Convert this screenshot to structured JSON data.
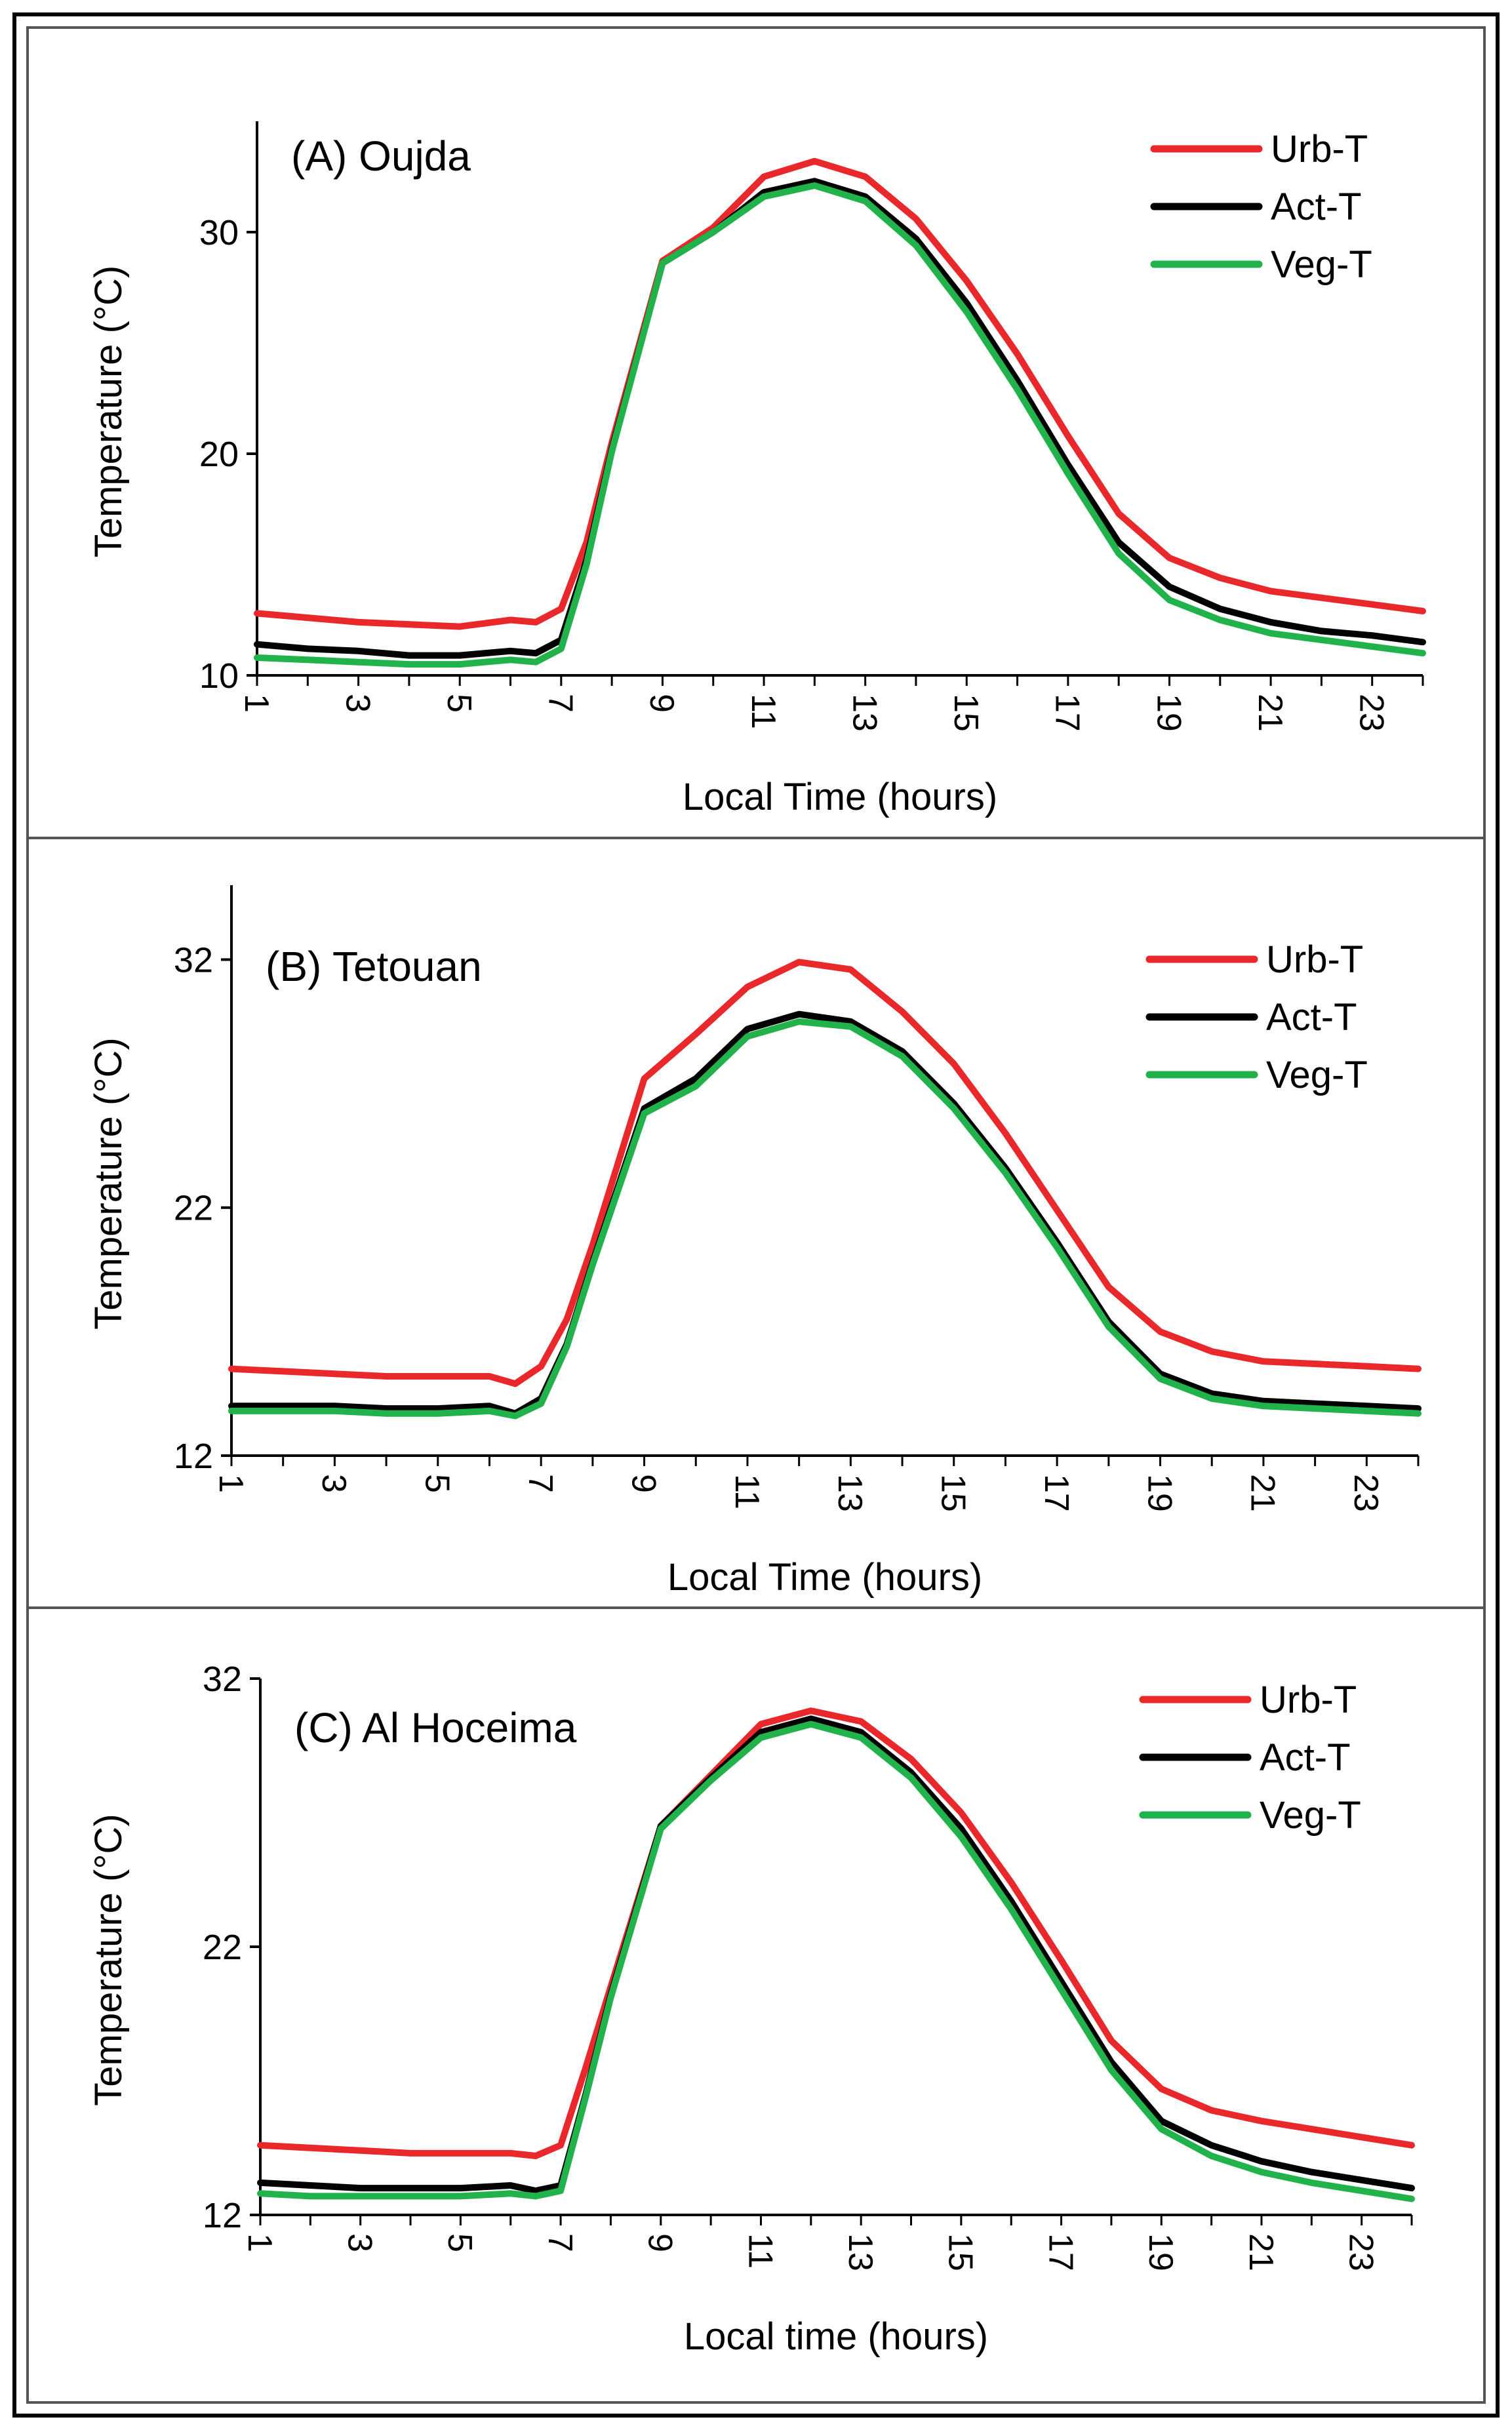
{
  "chart_data": [
    {
      "type": "line",
      "title": "(A) Oujda",
      "xlabel": "Local Time (hours)",
      "ylabel": "Temperature (°C)",
      "xlim": [
        1,
        24
      ],
      "ylim": [
        10,
        35
      ],
      "xticks": [
        1,
        3,
        5,
        7,
        9,
        11,
        13,
        15,
        17,
        19,
        21,
        23
      ],
      "yticks": [
        10,
        20,
        30
      ],
      "legend_position": "top-right",
      "x": [
        1,
        2,
        3,
        4,
        5,
        6,
        6.5,
        7,
        7.5,
        8,
        9,
        10,
        11,
        12,
        13,
        14,
        15,
        16,
        17,
        18,
        19,
        20,
        21,
        22,
        23,
        24
      ],
      "series": [
        {
          "name": "Urb-T",
          "color": "#e8282b",
          "values": [
            12.8,
            12.6,
            12.4,
            12.3,
            12.2,
            12.5,
            12.4,
            13.0,
            16.0,
            20.5,
            28.7,
            30.2,
            32.5,
            33.2,
            32.5,
            30.6,
            27.8,
            24.5,
            20.8,
            17.3,
            15.3,
            14.4,
            13.8,
            13.5,
            13.2,
            12.9
          ]
        },
        {
          "name": "Act-T",
          "color": "#000000",
          "values": [
            11.4,
            11.2,
            11.1,
            10.9,
            10.9,
            11.1,
            11.0,
            11.6,
            15.2,
            20.2,
            28.6,
            30.0,
            31.8,
            32.3,
            31.6,
            29.7,
            26.8,
            23.3,
            19.5,
            16.0,
            14.0,
            13.0,
            12.4,
            12.0,
            11.8,
            11.5
          ]
        },
        {
          "name": "Veg-T",
          "color": "#22b24c",
          "values": [
            10.8,
            10.7,
            10.6,
            10.5,
            10.5,
            10.7,
            10.6,
            11.2,
            15.0,
            20.1,
            28.6,
            30.0,
            31.6,
            32.1,
            31.4,
            29.4,
            26.4,
            22.9,
            19.1,
            15.5,
            13.4,
            12.5,
            11.9,
            11.6,
            11.3,
            11.0
          ]
        }
      ]
    },
    {
      "type": "line",
      "title": "(B) Tetouan",
      "xlabel": "Local Time (hours)",
      "ylabel": "Temperature (°C)",
      "xlim": [
        1,
        24
      ],
      "ylim": [
        12,
        35
      ],
      "xticks": [
        1,
        3,
        5,
        7,
        9,
        11,
        13,
        15,
        17,
        19,
        21,
        23
      ],
      "yticks": [
        12,
        22,
        32
      ],
      "legend_position": "top-right",
      "x": [
        1,
        2,
        3,
        4,
        5,
        6,
        6.5,
        7,
        7.5,
        8,
        9,
        10,
        11,
        12,
        13,
        14,
        15,
        16,
        17,
        18,
        19,
        20,
        21,
        22,
        23,
        24
      ],
      "series": [
        {
          "name": "Urb-T",
          "color": "#e8282b",
          "values": [
            15.5,
            15.4,
            15.3,
            15.2,
            15.2,
            15.2,
            14.9,
            15.6,
            17.5,
            20.5,
            27.2,
            29.0,
            30.9,
            31.9,
            31.6,
            29.9,
            27.8,
            25.0,
            21.9,
            18.8,
            17.0,
            16.2,
            15.8,
            15.7,
            15.6,
            15.5
          ]
        },
        {
          "name": "Act-T",
          "color": "#000000",
          "values": [
            14.0,
            14.0,
            14.0,
            13.9,
            13.9,
            14.0,
            13.7,
            14.3,
            16.5,
            19.8,
            26.0,
            27.2,
            29.2,
            29.8,
            29.5,
            28.3,
            26.2,
            23.6,
            20.6,
            17.4,
            15.3,
            14.5,
            14.2,
            14.1,
            14.0,
            13.9
          ]
        },
        {
          "name": "Veg-T",
          "color": "#22b24c",
          "values": [
            13.8,
            13.8,
            13.8,
            13.7,
            13.7,
            13.8,
            13.6,
            14.1,
            16.4,
            19.7,
            25.8,
            26.9,
            28.9,
            29.5,
            29.3,
            28.1,
            26.0,
            23.4,
            20.4,
            17.2,
            15.1,
            14.3,
            14.0,
            13.9,
            13.8,
            13.7
          ]
        }
      ]
    },
    {
      "type": "line",
      "title": "(C) Al Hoceima",
      "xlabel": "Local time (hours)",
      "ylabel": "Temperature (°C)",
      "xlim": [
        1,
        24
      ],
      "ylim": [
        12,
        32
      ],
      "xticks": [
        1,
        3,
        5,
        7,
        9,
        11,
        13,
        15,
        17,
        19,
        21,
        23
      ],
      "yticks": [
        12,
        22,
        32
      ],
      "legend_position": "top-right",
      "x": [
        1,
        2,
        3,
        4,
        5,
        6,
        6.5,
        7,
        7.5,
        8,
        9,
        10,
        11,
        12,
        13,
        14,
        15,
        16,
        17,
        18,
        19,
        20,
        21,
        22,
        23,
        24
      ],
      "series": [
        {
          "name": "Urb-T",
          "color": "#e8282b",
          "values": [
            14.6,
            14.5,
            14.4,
            14.3,
            14.3,
            14.3,
            14.2,
            14.6,
            17.5,
            20.5,
            26.5,
            28.4,
            30.3,
            30.8,
            30.4,
            29.0,
            27.0,
            24.4,
            21.5,
            18.5,
            16.7,
            15.9,
            15.5,
            15.2,
            14.9,
            14.6
          ]
        },
        {
          "name": "Act-T",
          "color": "#000000",
          "values": [
            13.2,
            13.1,
            13.0,
            13.0,
            13.0,
            13.1,
            12.9,
            13.1,
            16.5,
            20.2,
            26.5,
            28.3,
            30.0,
            30.5,
            30.0,
            28.5,
            26.4,
            23.7,
            20.7,
            17.7,
            15.5,
            14.6,
            14.0,
            13.6,
            13.3,
            13.0
          ]
        },
        {
          "name": "Veg-T",
          "color": "#22b24c",
          "values": [
            12.8,
            12.7,
            12.7,
            12.7,
            12.7,
            12.8,
            12.7,
            12.9,
            16.4,
            20.1,
            26.4,
            28.2,
            29.8,
            30.3,
            29.8,
            28.3,
            26.1,
            23.4,
            20.4,
            17.4,
            15.2,
            14.2,
            13.6,
            13.2,
            12.9,
            12.6
          ]
        }
      ]
    }
  ]
}
